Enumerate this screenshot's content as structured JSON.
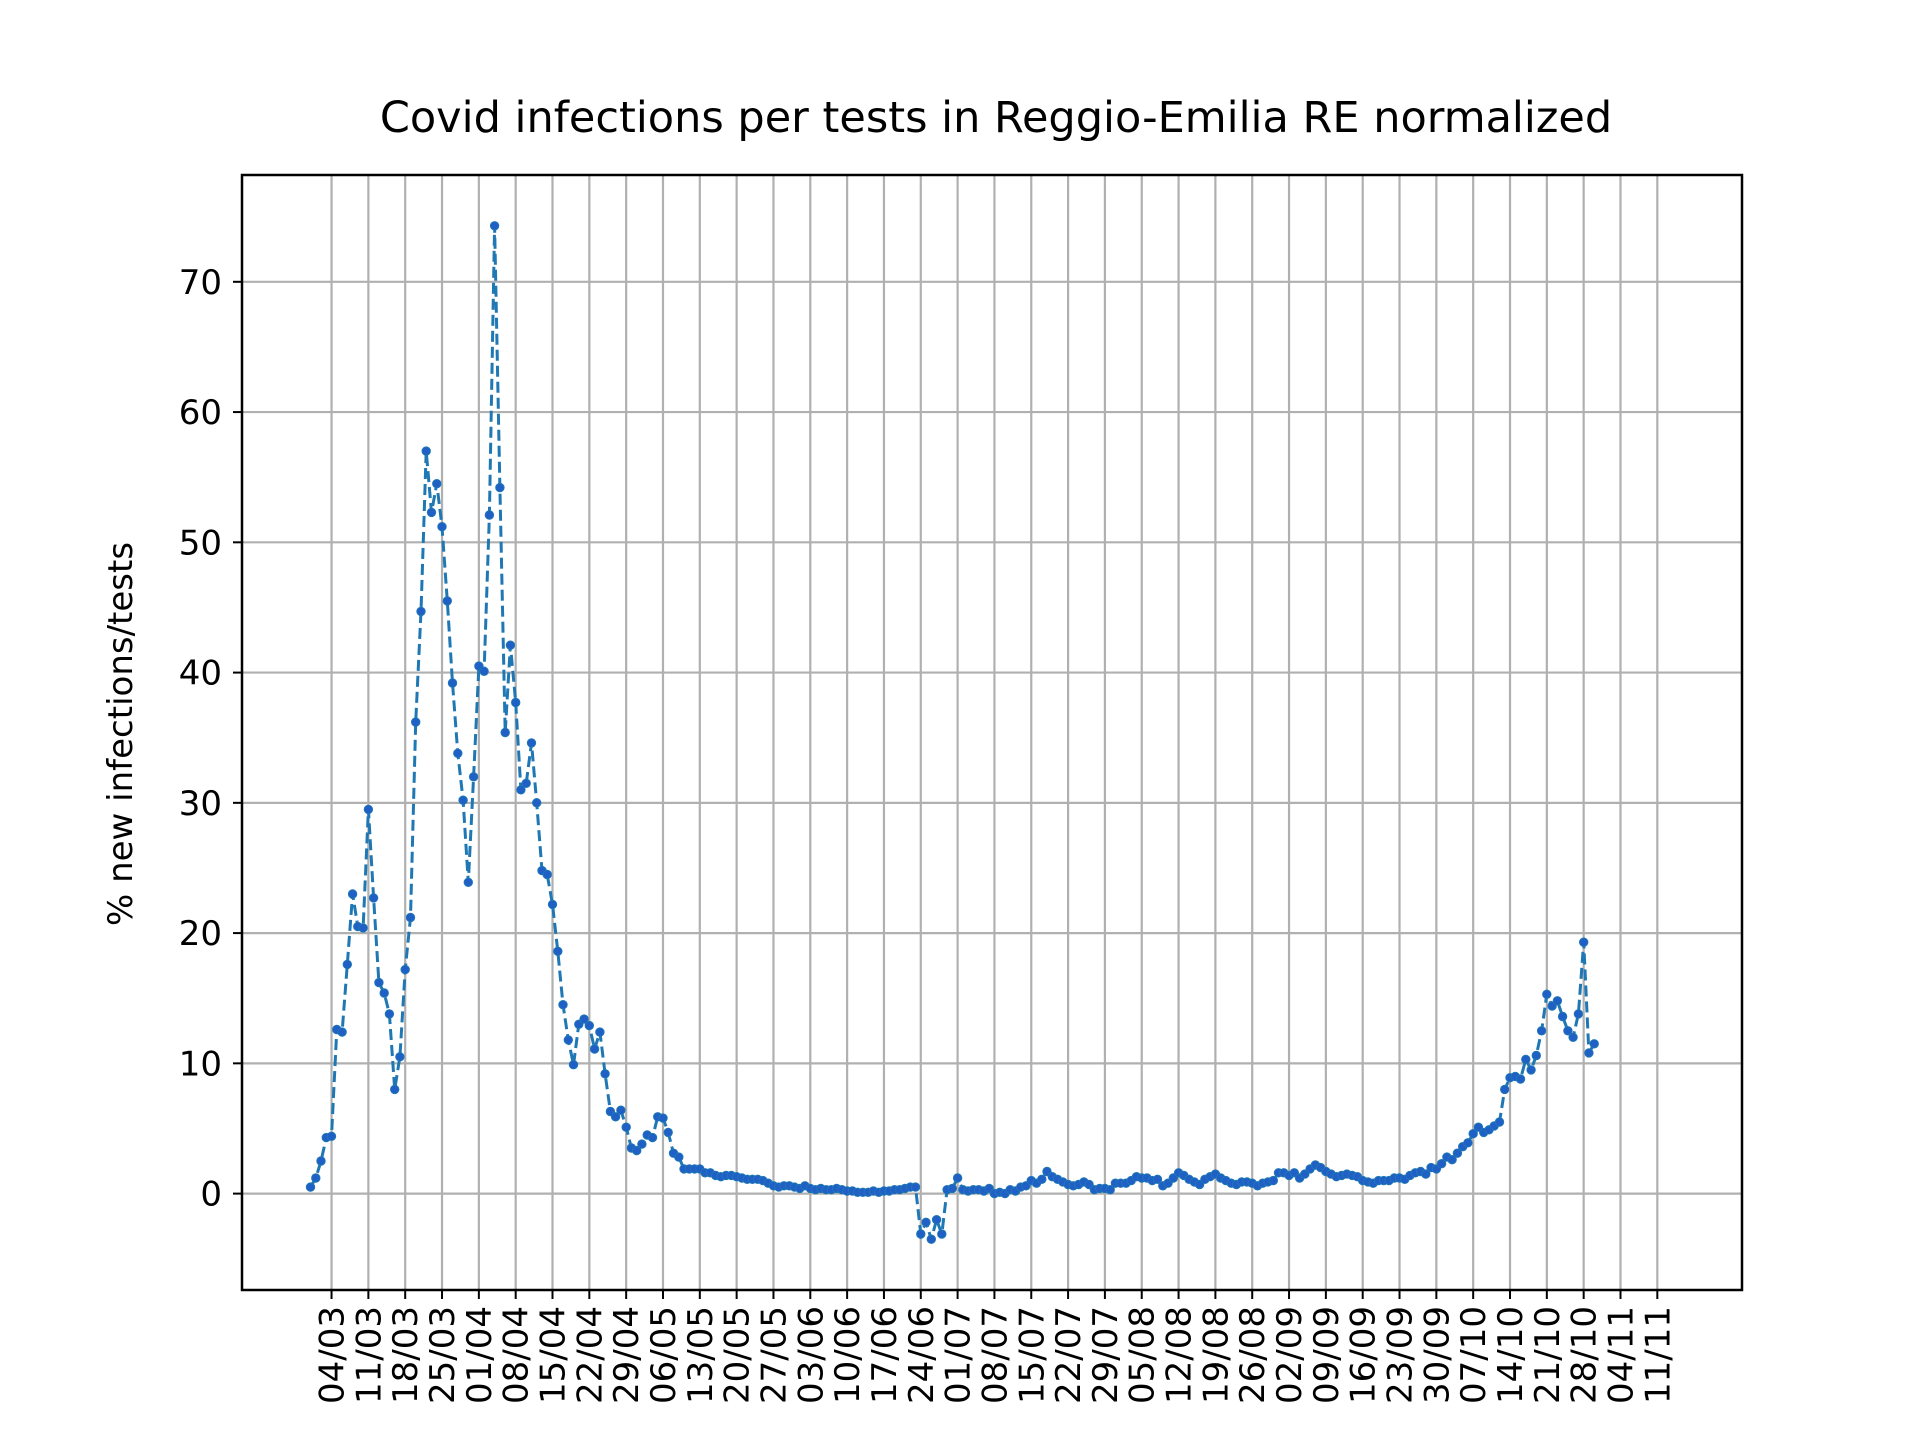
{
  "chart_data": {
    "type": "line",
    "title": "Covid infections per tests in Reggio-Emilia RE normalized",
    "xlabel": "",
    "ylabel": "% new infections/tests",
    "ylim": [
      -7.4,
      78.2
    ],
    "yticks": [
      0,
      10,
      20,
      30,
      40,
      50,
      60,
      70
    ],
    "xticks": [
      "04/03",
      "11/03",
      "18/03",
      "25/03",
      "01/04",
      "08/04",
      "15/04",
      "22/04",
      "29/04",
      "06/05",
      "13/05",
      "20/05",
      "27/05",
      "03/06",
      "10/06",
      "17/06",
      "24/06",
      "01/07",
      "08/07",
      "15/07",
      "22/07",
      "29/07",
      "05/08",
      "12/08",
      "19/08",
      "26/08",
      "02/09",
      "09/09",
      "16/09",
      "23/09",
      "30/09",
      "07/10",
      "14/10",
      "21/10",
      "28/10",
      "04/11",
      "11/11"
    ],
    "grid": true,
    "legend": "none",
    "line_color": "#1f77b4",
    "marker_color": "#1f5fc6",
    "series": [
      {
        "start_label": "29/02",
        "values": [
          0.5,
          1.2,
          2.5,
          4.3,
          4.4,
          12.6,
          12.4,
          17.6,
          23.0,
          20.5,
          20.4,
          29.5,
          22.7,
          16.2,
          15.4,
          13.8,
          8.0,
          10.5,
          17.2,
          21.2,
          36.2,
          44.7,
          57.0,
          52.3,
          54.5,
          51.2,
          45.5,
          39.2,
          33.8,
          30.2,
          23.9,
          32.0,
          40.5,
          40.1,
          52.1,
          74.3,
          54.2,
          35.4,
          42.1,
          37.7,
          31.0,
          31.5,
          34.6,
          30.0,
          24.8,
          24.5,
          22.2,
          18.6,
          14.5,
          11.8,
          9.9,
          13.0,
          13.4,
          12.9,
          11.1,
          12.4,
          9.2,
          6.3,
          5.9,
          6.4,
          5.1,
          3.5,
          3.3,
          3.8,
          4.5,
          4.3,
          5.9,
          5.8,
          4.7,
          3.1,
          2.8,
          1.9,
          1.9,
          1.9,
          1.9,
          1.6,
          1.6,
          1.4,
          1.3,
          1.4,
          1.4,
          1.3,
          1.2,
          1.1,
          1.1,
          1.1,
          1.0,
          0.8,
          0.6,
          0.5,
          0.6,
          0.6,
          0.5,
          0.4,
          0.6,
          0.4,
          0.3,
          0.4,
          0.3,
          0.3,
          0.4,
          0.3,
          0.2,
          0.2,
          0.1,
          0.1,
          0.1,
          0.2,
          0.1,
          0.2,
          0.2,
          0.3,
          0.3,
          0.4,
          0.5,
          0.5,
          -3.1,
          -2.2,
          -3.5,
          -2.0,
          -3.1,
          0.3,
          0.4,
          1.2,
          0.3,
          0.2,
          0.3,
          0.3,
          0.2,
          0.4,
          0.0,
          0.1,
          0.0,
          0.3,
          0.2,
          0.5,
          0.6,
          1.0,
          0.8,
          1.1,
          1.7,
          1.3,
          1.1,
          0.9,
          0.7,
          0.6,
          0.7,
          0.9,
          0.7,
          0.3,
          0.4,
          0.4,
          0.3,
          0.8,
          0.8,
          0.8,
          1.0,
          1.3,
          1.2,
          1.2,
          1.0,
          1.1,
          0.6,
          0.8,
          1.2,
          1.6,
          1.4,
          1.1,
          0.9,
          0.7,
          1.1,
          1.3,
          1.5,
          1.2,
          1.0,
          0.8,
          0.7,
          0.9,
          0.9,
          0.8,
          0.6,
          0.8,
          0.9,
          1.0,
          1.6,
          1.6,
          1.4,
          1.6,
          1.2,
          1.5,
          1.9,
          2.2,
          2.0,
          1.7,
          1.5,
          1.3,
          1.4,
          1.5,
          1.4,
          1.3,
          1.0,
          0.9,
          0.8,
          1.0,
          1.0,
          1.0,
          1.2,
          1.2,
          1.1,
          1.4,
          1.6,
          1.7,
          1.5,
          2.0,
          1.9,
          2.3,
          2.8,
          2.6,
          3.1,
          3.6,
          3.9,
          4.6,
          5.1,
          4.7,
          4.9,
          5.2,
          5.5,
          8.0,
          8.9,
          9.0,
          8.8,
          10.3,
          9.5,
          10.6,
          12.5,
          15.3,
          14.4,
          14.8,
          13.6,
          12.5,
          12.0,
          13.8,
          19.3,
          10.8,
          11.5
        ]
      }
    ]
  }
}
